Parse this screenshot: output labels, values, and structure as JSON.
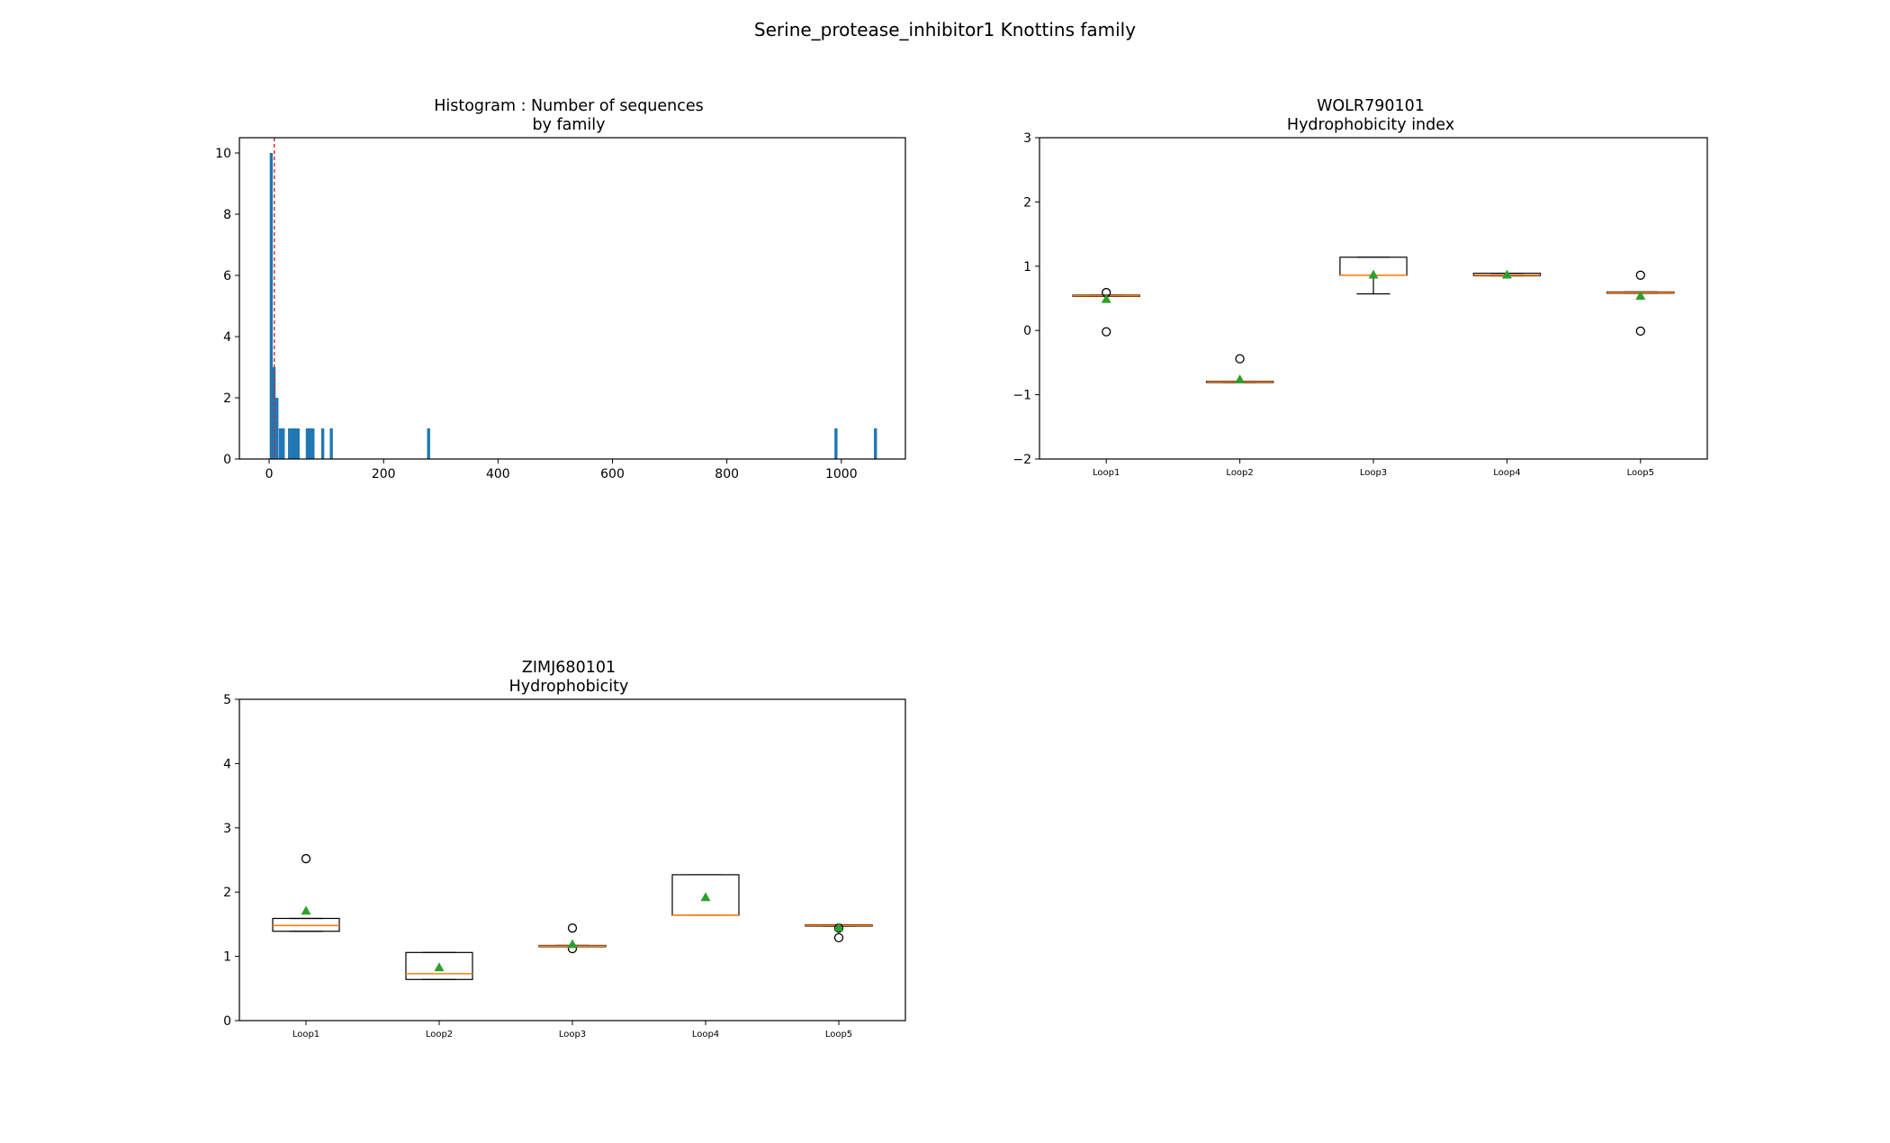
{
  "figure": {
    "suptitle": "Serine_protease_inhibitor1 Knottins family"
  },
  "chart_data": [
    {
      "id": "histogram",
      "type": "histogram",
      "title": "Histogram : Number of sequences",
      "subtitle": "by family",
      "xlabel": "",
      "ylabel": "",
      "xlim": [
        -52,
        1112
      ],
      "ylim": [
        0,
        10.5
      ],
      "xticks": [
        0,
        200,
        400,
        600,
        800,
        1000
      ],
      "yticks": [
        0,
        2,
        4,
        6,
        8,
        10
      ],
      "bar_color": "#1f77b4",
      "bin_width": 5.3,
      "bars": [
        {
          "x": 1,
          "count": 10
        },
        {
          "x": 6,
          "count": 3
        },
        {
          "x": 11,
          "count": 2
        },
        {
          "x": 17,
          "count": 1
        },
        {
          "x": 22,
          "count": 1
        },
        {
          "x": 33,
          "count": 1
        },
        {
          "x": 38,
          "count": 1
        },
        {
          "x": 43,
          "count": 1
        },
        {
          "x": 48,
          "count": 1
        },
        {
          "x": 64,
          "count": 1
        },
        {
          "x": 69,
          "count": 1
        },
        {
          "x": 74,
          "count": 1
        },
        {
          "x": 91,
          "count": 1
        },
        {
          "x": 106,
          "count": 1
        },
        {
          "x": 276,
          "count": 1
        },
        {
          "x": 988,
          "count": 1
        },
        {
          "x": 1057,
          "count": 1
        }
      ],
      "reference_line": {
        "x": 9,
        "color": "#d62728",
        "style": "dashed"
      },
      "grid": false
    },
    {
      "id": "wolr",
      "type": "boxplot",
      "title": "WOLR790101",
      "subtitle": "Hydrophobicity index",
      "categories": [
        "Loop1",
        "Loop2",
        "Loop3",
        "Loop4",
        "Loop5"
      ],
      "ylim": [
        -2,
        3
      ],
      "yticks": [
        -2,
        -1,
        0,
        1,
        2,
        3
      ],
      "boxes": [
        {
          "q1": 0.53,
          "median": 0.54,
          "q3": 0.55,
          "whisker_low": 0.53,
          "whisker_high": 0.55,
          "mean": 0.49,
          "fliers": [
            0.59,
            -0.02
          ]
        },
        {
          "q1": -0.81,
          "median": -0.8,
          "q3": -0.79,
          "whisker_low": -0.81,
          "whisker_high": -0.79,
          "mean": -0.76,
          "fliers": [
            -0.44
          ]
        },
        {
          "q1": 0.86,
          "median": 0.86,
          "q3": 1.14,
          "whisker_low": 0.57,
          "whisker_high": 1.14,
          "mean": 0.87,
          "fliers": []
        },
        {
          "q1": 0.85,
          "median": 0.86,
          "q3": 0.89,
          "whisker_low": 0.85,
          "whisker_high": 0.89,
          "mean": 0.87,
          "fliers": []
        },
        {
          "q1": 0.58,
          "median": 0.59,
          "q3": 0.6,
          "whisker_low": 0.58,
          "whisker_high": 0.6,
          "mean": 0.54,
          "fliers": [
            0.86,
            -0.01
          ]
        }
      ],
      "median_color": "#ff7f0e",
      "mean_color": "#2ca02c",
      "grid": false
    },
    {
      "id": "zimj",
      "type": "boxplot",
      "title": "ZIMJ680101",
      "subtitle": "Hydrophobicity",
      "categories": [
        "Loop1",
        "Loop2",
        "Loop3",
        "Loop4",
        "Loop5"
      ],
      "ylim": [
        0,
        5
      ],
      "yticks": [
        0,
        1,
        2,
        3,
        4,
        5
      ],
      "boxes": [
        {
          "q1": 1.39,
          "median": 1.48,
          "q3": 1.59,
          "whisker_low": 1.39,
          "whisker_high": 1.59,
          "mean": 1.71,
          "fliers": [
            2.52
          ]
        },
        {
          "q1": 0.64,
          "median": 0.73,
          "q3": 1.06,
          "whisker_low": 0.64,
          "whisker_high": 1.06,
          "mean": 0.83,
          "fliers": []
        },
        {
          "q1": 1.15,
          "median": 1.16,
          "q3": 1.17,
          "whisker_low": 1.15,
          "whisker_high": 1.17,
          "mean": 1.19,
          "fliers": [
            1.44,
            1.12
          ]
        },
        {
          "q1": 1.64,
          "median": 1.64,
          "q3": 2.27,
          "whisker_low": 1.64,
          "whisker_high": 2.27,
          "mean": 1.92,
          "fliers": []
        },
        {
          "q1": 1.47,
          "median": 1.48,
          "q3": 1.49,
          "whisker_low": 1.47,
          "whisker_high": 1.49,
          "mean": 1.45,
          "fliers": [
            1.44,
            1.29
          ]
        }
      ],
      "median_color": "#ff7f0e",
      "mean_color": "#2ca02c",
      "grid": false
    }
  ]
}
